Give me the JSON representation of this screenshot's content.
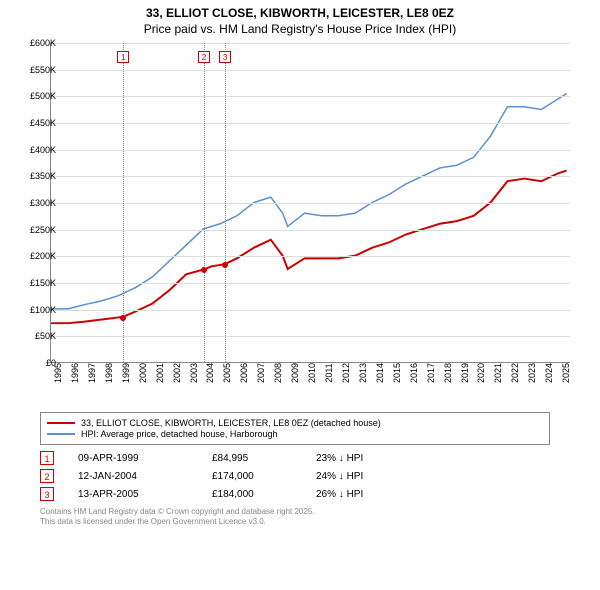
{
  "title_line1": "33, ELLIOT CLOSE, KIBWORTH, LEICESTER, LE8 0EZ",
  "title_line2": "Price paid vs. HM Land Registry's House Price Index (HPI)",
  "chart": {
    "type": "line",
    "background_color": "#ffffff",
    "grid_color": "#dddddd",
    "axis_color": "#888888",
    "x_years": [
      1995,
      1996,
      1997,
      1998,
      1999,
      2000,
      2001,
      2002,
      2003,
      2004,
      2005,
      2006,
      2007,
      2008,
      2009,
      2010,
      2011,
      2012,
      2013,
      2014,
      2015,
      2016,
      2017,
      2018,
      2019,
      2020,
      2021,
      2022,
      2023,
      2024,
      2025
    ],
    "x_min": 1995,
    "x_max": 2025.7,
    "y_min": 0,
    "y_max": 600,
    "y_ticks": [
      0,
      50,
      100,
      150,
      200,
      250,
      300,
      350,
      400,
      450,
      500,
      550,
      600
    ],
    "y_tick_labels": [
      "£0",
      "£50K",
      "£100K",
      "£150K",
      "£200K",
      "£250K",
      "£300K",
      "£350K",
      "£400K",
      "£450K",
      "£500K",
      "£550K",
      "£600K"
    ],
    "series_price": {
      "label": "33, ELLIOT CLOSE, KIBWORTH, LEICESTER, LE8 0EZ (detached house)",
      "color": "#cc0000",
      "width": 2,
      "points": [
        [
          1995,
          73
        ],
        [
          1996,
          73
        ],
        [
          1997,
          76
        ],
        [
          1998,
          80
        ],
        [
          1999.27,
          84.995
        ],
        [
          2000,
          95
        ],
        [
          2001,
          110
        ],
        [
          2002,
          135
        ],
        [
          2003,
          165
        ],
        [
          2004.03,
          174
        ],
        [
          2004.5,
          180
        ],
        [
          2005.28,
          184
        ],
        [
          2006,
          195
        ],
        [
          2007,
          215
        ],
        [
          2008,
          230
        ],
        [
          2008.7,
          200
        ],
        [
          2009,
          175
        ],
        [
          2010,
          195
        ],
        [
          2011,
          195
        ],
        [
          2012,
          195
        ],
        [
          2013,
          200
        ],
        [
          2014,
          215
        ],
        [
          2015,
          225
        ],
        [
          2016,
          240
        ],
        [
          2017,
          250
        ],
        [
          2018,
          260
        ],
        [
          2019,
          265
        ],
        [
          2020,
          275
        ],
        [
          2021,
          300
        ],
        [
          2022,
          340
        ],
        [
          2023,
          345
        ],
        [
          2024,
          340
        ],
        [
          2025,
          355
        ],
        [
          2025.5,
          360
        ]
      ]
    },
    "series_hpi": {
      "label": "HPI: Average price, detached house, Harborough",
      "color": "#5b8fd6",
      "width": 1.5,
      "points": [
        [
          1995,
          100
        ],
        [
          1996,
          100
        ],
        [
          1997,
          108
        ],
        [
          1998,
          115
        ],
        [
          1999,
          125
        ],
        [
          2000,
          140
        ],
        [
          2001,
          160
        ],
        [
          2002,
          190
        ],
        [
          2003,
          220
        ],
        [
          2004,
          250
        ],
        [
          2005,
          260
        ],
        [
          2006,
          275
        ],
        [
          2007,
          300
        ],
        [
          2008,
          310
        ],
        [
          2008.7,
          280
        ],
        [
          2009,
          255
        ],
        [
          2010,
          280
        ],
        [
          2011,
          275
        ],
        [
          2012,
          275
        ],
        [
          2013,
          280
        ],
        [
          2014,
          300
        ],
        [
          2015,
          315
        ],
        [
          2016,
          335
        ],
        [
          2017,
          350
        ],
        [
          2018,
          365
        ],
        [
          2019,
          370
        ],
        [
          2020,
          385
        ],
        [
          2021,
          425
        ],
        [
          2022,
          480
        ],
        [
          2023,
          480
        ],
        [
          2024,
          475
        ],
        [
          2025,
          495
        ],
        [
          2025.5,
          505
        ]
      ]
    },
    "sale_markers": [
      {
        "n": "1",
        "x": 1999.27,
        "y": 84.995
      },
      {
        "n": "2",
        "x": 2004.03,
        "y": 174
      },
      {
        "n": "3",
        "x": 2005.28,
        "y": 184
      }
    ]
  },
  "legend": {
    "items": [
      {
        "color": "#cc0000",
        "label": "33, ELLIOT CLOSE, KIBWORTH, LEICESTER, LE8 0EZ (detached house)"
      },
      {
        "color": "#5b8fd6",
        "label": "HPI: Average price, detached house, Harborough"
      }
    ]
  },
  "sales": [
    {
      "n": "1",
      "date": "09-APR-1999",
      "price": "£84,995",
      "diff": "23% ↓ HPI"
    },
    {
      "n": "2",
      "date": "12-JAN-2004",
      "price": "£174,000",
      "diff": "24% ↓ HPI"
    },
    {
      "n": "3",
      "date": "13-APR-2005",
      "price": "£184,000",
      "diff": "26% ↓ HPI"
    }
  ],
  "footer_line1": "Contains HM Land Registry data © Crown copyright and database right 2025.",
  "footer_line2": "This data is licensed under the Open Government Licence v3.0."
}
